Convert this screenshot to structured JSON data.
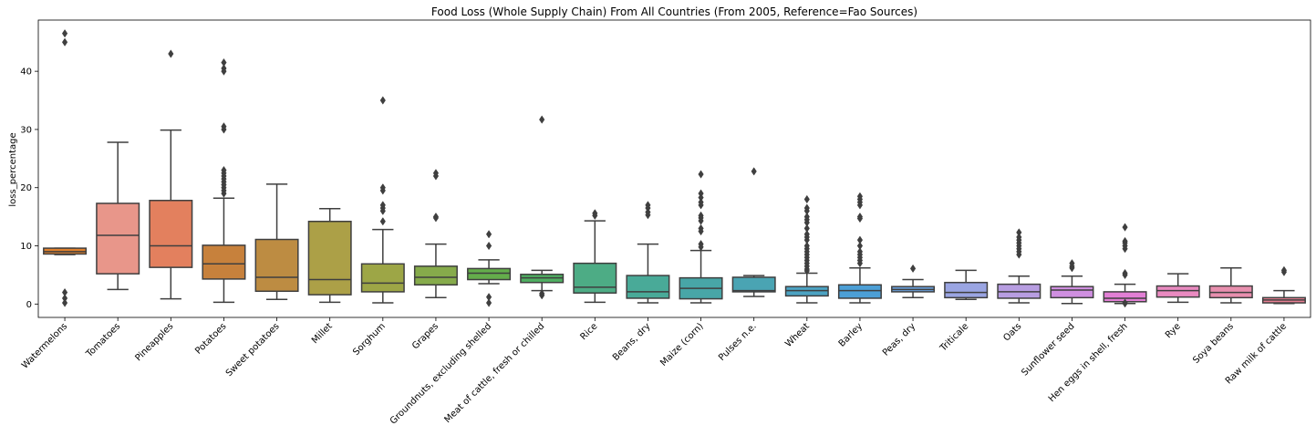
{
  "chart_data": {
    "type": "box",
    "title": "Food Loss (Whole Supply Chain) From All Countries (From 2005, Reference=Fao Sources)",
    "xlabel": "",
    "ylabel": "loss_percentage",
    "ylim": [
      -2.3,
      48.8
    ],
    "yticks": [
      0,
      10,
      20,
      30,
      40
    ],
    "grid": false,
    "categories": [
      "Watermelons",
      "Tomatoes",
      "Pineapples",
      "Potatoes",
      "Sweet potatoes",
      "Millet",
      "Sorghum",
      "Grapes",
      "Groundnuts, excluding shelled",
      "Meat of cattle, fresh or chilled",
      "Rice",
      "Beans, dry",
      "Maize (corn)",
      "Pulses n.e.",
      "Wheat",
      "Barley",
      "Peas, dry",
      "Triticale",
      "Oats",
      "Sunflower seed",
      "Hen eggs in shell, fresh",
      "Rye",
      "Soya beans",
      "Raw milk of cattle"
    ],
    "colors": [
      "#e1812c",
      "#e8968a",
      "#e3805e",
      "#c7813c",
      "#bd8c42",
      "#aca047",
      "#9da646",
      "#86ab4b",
      "#64ad4b",
      "#4fae61",
      "#4dac85",
      "#49aa98",
      "#48a6a7",
      "#4aa4b3",
      "#4ca3c3",
      "#4c9fd6",
      "#6aa0dc",
      "#9aa5e2",
      "#b79de1",
      "#cf8fe0",
      "#e27fd5",
      "#e98ac0",
      "#e88fae",
      "#e77f92"
    ],
    "boxes": [
      {
        "whislo": 8.5,
        "q1": 8.6,
        "med": 9.0,
        "q3": 9.6,
        "whishi": 9.6,
        "fliers": [
          46.5,
          45.0,
          2.0,
          1.0,
          0.2
        ]
      },
      {
        "whislo": 2.5,
        "q1": 5.2,
        "med": 11.8,
        "q3": 17.3,
        "whishi": 27.8,
        "fliers": []
      },
      {
        "whislo": 0.9,
        "q1": 6.3,
        "med": 10.0,
        "q3": 17.8,
        "whishi": 29.9,
        "fliers": [
          43.0
        ]
      },
      {
        "whislo": 0.3,
        "q1": 4.3,
        "med": 6.9,
        "q3": 10.1,
        "whishi": 18.2,
        "fliers": [
          41.5,
          40.5,
          40.0,
          30.5,
          30.0,
          23.0,
          22.5,
          22.0,
          21.5,
          21.0,
          20.5,
          20.0,
          19.5,
          19.0
        ]
      },
      {
        "whislo": 0.8,
        "q1": 2.2,
        "med": 4.6,
        "q3": 11.1,
        "whishi": 20.6,
        "fliers": []
      },
      {
        "whislo": 0.3,
        "q1": 1.6,
        "med": 4.2,
        "q3": 14.2,
        "whishi": 16.4,
        "fliers": []
      },
      {
        "whislo": 0.2,
        "q1": 2.1,
        "med": 3.6,
        "q3": 6.9,
        "whishi": 12.8,
        "fliers": [
          35.0,
          20.0,
          19.5,
          17.0,
          16.5,
          16.0,
          14.2
        ]
      },
      {
        "whislo": 1.1,
        "q1": 3.3,
        "med": 4.6,
        "q3": 6.5,
        "whishi": 10.3,
        "fliers": [
          22.5,
          22.0,
          15.0,
          14.8
        ]
      },
      {
        "whislo": 3.5,
        "q1": 4.2,
        "med": 5.3,
        "q3": 6.1,
        "whishi": 7.6,
        "fliers": [
          12.0,
          10.0,
          1.2,
          0.2
        ]
      },
      {
        "whislo": 2.3,
        "q1": 3.7,
        "med": 4.5,
        "q3": 5.1,
        "whishi": 5.8,
        "fliers": [
          31.7,
          1.8,
          1.5
        ]
      },
      {
        "whislo": 0.3,
        "q1": 1.9,
        "med": 2.9,
        "q3": 7.0,
        "whishi": 14.3,
        "fliers": [
          15.6,
          15.2
        ]
      },
      {
        "whislo": 0.2,
        "q1": 1.0,
        "med": 2.1,
        "q3": 4.9,
        "whishi": 10.3,
        "fliers": [
          17.0,
          16.5,
          15.8,
          15.3
        ]
      },
      {
        "whislo": 0.2,
        "q1": 0.9,
        "med": 2.7,
        "q3": 4.5,
        "whishi": 9.2,
        "fliers": [
          22.3,
          19.0,
          18.3,
          17.5,
          17.0,
          15.2,
          14.8,
          14.3,
          13.0,
          12.5,
          10.3,
          9.8
        ]
      },
      {
        "whislo": 1.3,
        "q1": 2.1,
        "med": 2.3,
        "q3": 4.6,
        "whishi": 4.9,
        "fliers": [
          22.8
        ]
      },
      {
        "whislo": 0.2,
        "q1": 1.4,
        "med": 2.3,
        "q3": 3.0,
        "whishi": 5.3,
        "fliers": [
          18.0,
          16.5,
          16.0,
          15.0,
          14.5,
          14.0,
          13.0,
          12.0,
          11.5,
          11.0,
          10.0,
          9.5,
          9.0,
          8.5,
          8.0,
          7.5,
          7.0,
          6.5,
          6.0,
          5.7
        ]
      },
      {
        "whislo": 0.2,
        "q1": 1.0,
        "med": 2.3,
        "q3": 3.3,
        "whishi": 6.2,
        "fliers": [
          18.5,
          18.0,
          17.5,
          17.0,
          15.0,
          14.7,
          11.0,
          10.0,
          9.0,
          8.5,
          8.0,
          7.5,
          7.0
        ]
      },
      {
        "whislo": 1.1,
        "q1": 2.1,
        "med": 2.5,
        "q3": 3.0,
        "whishi": 4.2,
        "fliers": [
          6.1
        ]
      },
      {
        "whislo": 0.8,
        "q1": 1.1,
        "med": 2.0,
        "q3": 3.7,
        "whishi": 5.8,
        "fliers": []
      },
      {
        "whislo": 0.2,
        "q1": 1.0,
        "med": 2.1,
        "q3": 3.4,
        "whishi": 4.8,
        "fliers": [
          12.3,
          11.5,
          11.0,
          10.5,
          10.0,
          9.5,
          9.0,
          8.5
        ]
      },
      {
        "whislo": 0.1,
        "q1": 1.1,
        "med": 2.4,
        "q3": 3.0,
        "whishi": 4.8,
        "fliers": [
          7.0,
          6.5,
          6.2
        ]
      },
      {
        "whislo": 0.1,
        "q1": 0.4,
        "med": 1.0,
        "q3": 2.1,
        "whishi": 3.4,
        "fliers": [
          13.2,
          10.8,
          10.5,
          10.0,
          9.5,
          5.3,
          5.0,
          0.2,
          0.1
        ]
      },
      {
        "whislo": 0.3,
        "q1": 1.2,
        "med": 2.3,
        "q3": 3.1,
        "whishi": 5.2,
        "fliers": []
      },
      {
        "whislo": 0.2,
        "q1": 1.1,
        "med": 2.0,
        "q3": 3.1,
        "whishi": 6.2,
        "fliers": []
      },
      {
        "whislo": 0.1,
        "q1": 0.2,
        "med": 0.7,
        "q3": 1.1,
        "whishi": 2.3,
        "fliers": [
          5.8,
          5.5
        ]
      }
    ]
  }
}
